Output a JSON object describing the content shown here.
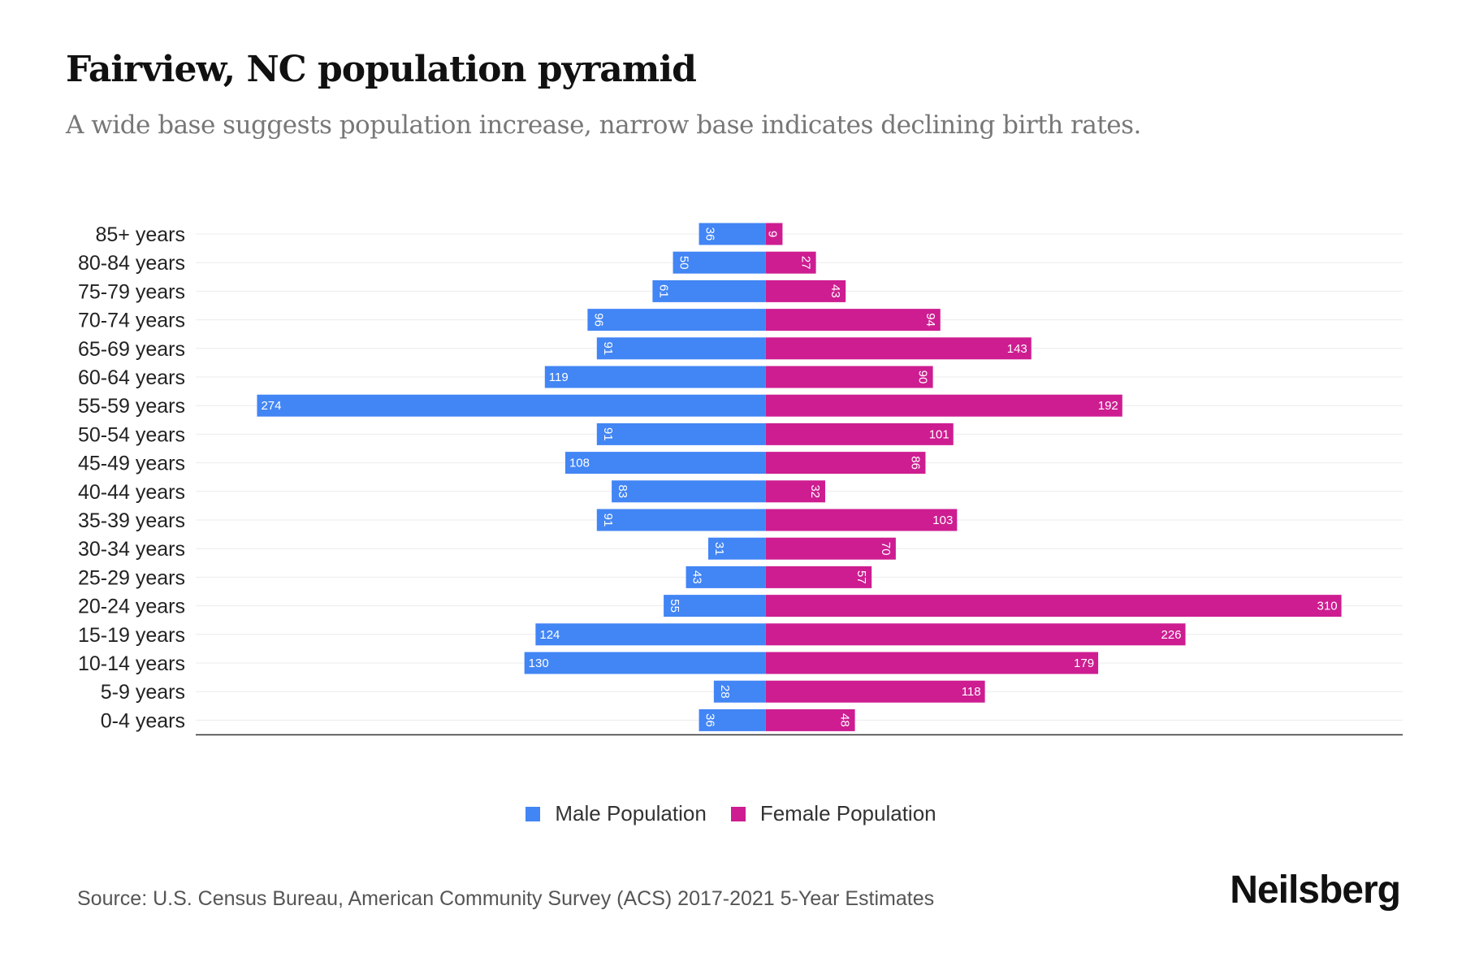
{
  "colors": {
    "male": "#4285f4",
    "female": "#cd1d91"
  },
  "chart_data": {
    "type": "bar",
    "orientation": "horizontal-pyramid",
    "title": "Fairview, NC population pyramid",
    "subtitle": "A wide base suggests population increase, narrow base indicates declining birth rates.",
    "categories": [
      "85+ years",
      "80-84 years",
      "75-79 years",
      "70-74 years",
      "65-69 years",
      "60-64 years",
      "55-59 years",
      "50-54 years",
      "45-49 years",
      "40-44 years",
      "35-39 years",
      "30-34 years",
      "25-29 years",
      "20-24 years",
      "15-19 years",
      "10-14 years",
      "5-9 years",
      "0-4 years"
    ],
    "series": [
      {
        "name": "Male Population",
        "values": [
          36,
          50,
          61,
          96,
          91,
          119,
          274,
          91,
          108,
          83,
          91,
          31,
          43,
          55,
          124,
          130,
          28,
          36
        ]
      },
      {
        "name": "Female Population",
        "values": [
          9,
          27,
          43,
          94,
          143,
          90,
          192,
          101,
          86,
          32,
          103,
          70,
          57,
          310,
          226,
          179,
          118,
          48
        ]
      }
    ],
    "xlim": [
      -307,
      343
    ],
    "legend": "bottom-center",
    "grid": true
  },
  "source": "Source: U.S. Census Bureau, American Community Survey (ACS) 2017-2021 5-Year Estimates",
  "logo": "Neilsberg"
}
